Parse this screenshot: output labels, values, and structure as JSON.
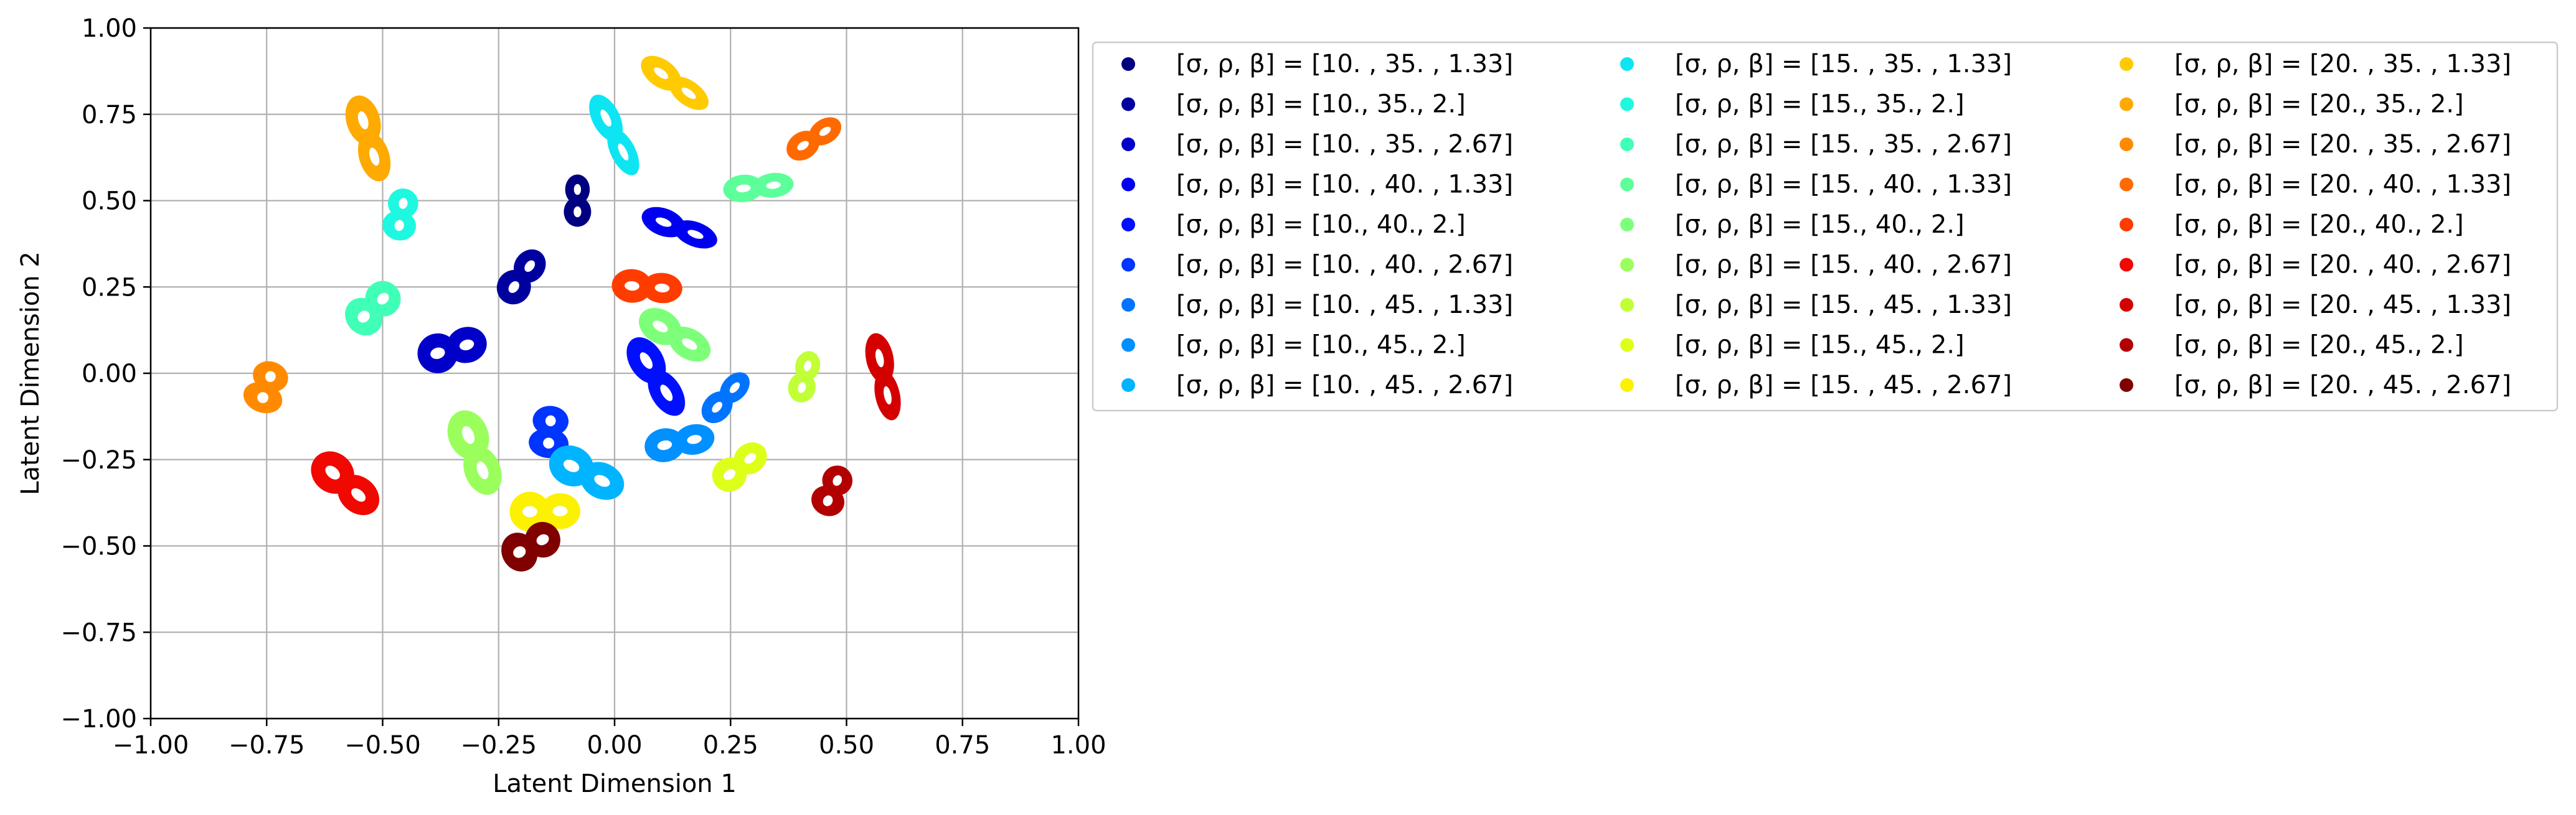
{
  "chart_data": {
    "type": "scatter",
    "title": "",
    "xlabel": "Latent Dimension 1",
    "ylabel": "Latent Dimension 2",
    "xlim": [
      -1.0,
      1.0
    ],
    "ylim": [
      -1.0,
      1.0
    ],
    "xticks": [
      "−1.00",
      "−0.75",
      "−0.50",
      "−0.25",
      "0.00",
      "0.25",
      "0.50",
      "0.75",
      "1.00"
    ],
    "yticks": [
      "−1.00",
      "−0.75",
      "−0.50",
      "−0.25",
      "0.00",
      "0.25",
      "0.50",
      "0.75",
      "1.00"
    ],
    "grid": true,
    "legend_placement": "outside-right",
    "series": [
      {
        "name": "[σ, ρ, β] = [10.  , 35.  ,  1.33]",
        "color": "#000080",
        "x": -0.08,
        "y": 0.5
      },
      {
        "name": "[σ, ρ, β] = [10., 35.,  2.]",
        "color": "#00009f",
        "x": -0.2,
        "y": 0.28
      },
      {
        "name": "[σ, ρ, β] = [10.  , 35.  ,  2.67]",
        "color": "#0000c8",
        "x": -0.35,
        "y": 0.07
      },
      {
        "name": "[σ, ρ, β] = [10.  , 40.  ,  1.33]",
        "color": "#0000f1",
        "x": 0.14,
        "y": 0.42
      },
      {
        "name": "[σ, ρ, β] = [10., 40.,  2.]",
        "color": "#0010ff",
        "x": 0.09,
        "y": -0.01
      },
      {
        "name": "[σ, ρ, β] = [10.  , 40.  ,  2.67]",
        "color": "#0034ff",
        "x": -0.14,
        "y": -0.17
      },
      {
        "name": "[σ, ρ, β] = [10.  , 45.  ,  1.33]",
        "color": "#0074ff",
        "x": 0.24,
        "y": -0.07
      },
      {
        "name": "[σ, ρ, β] = [10., 45.,  2.]",
        "color": "#0090ff",
        "x": 0.14,
        "y": -0.2
      },
      {
        "name": "[σ, ρ, β] = [10.  , 45.  ,  2.67]",
        "color": "#00b4ff",
        "x": -0.06,
        "y": -0.29
      },
      {
        "name": "[σ, ρ, β] = [15.  , 35.  ,  1.33]",
        "color": "#0de5f2",
        "x": 0.0,
        "y": 0.69
      },
      {
        "name": "[σ, ρ, β] = [15., 35.,  2.]",
        "color": "#1ff8e1",
        "x": -0.46,
        "y": 0.46
      },
      {
        "name": "[σ, ρ, β] = [15.  , 35.  ,  2.67]",
        "color": "#40ffb7",
        "x": -0.52,
        "y": 0.19
      },
      {
        "name": "[σ, ρ, β] = [15.  , 40.  ,  1.33]",
        "color": "#5dff9a",
        "x": 0.31,
        "y": 0.54
      },
      {
        "name": "[σ, ρ, β] = [15., 40.,  2.]",
        "color": "#7dff7a",
        "x": 0.13,
        "y": 0.11
      },
      {
        "name": "[σ, ρ, β] = [15.  , 40.  ,  2.67]",
        "color": "#9aff5d",
        "x": -0.3,
        "y": -0.23
      },
      {
        "name": "[σ, ρ, β] = [15.  , 45.  ,  1.33]",
        "color": "#c1ff36",
        "x": 0.41,
        "y": -0.01
      },
      {
        "name": "[σ, ρ, β] = [15., 45.,  2.]",
        "color": "#deff19",
        "x": 0.27,
        "y": -0.27
      },
      {
        "name": "[σ, ρ, β] = [15.  , 45.  ,  2.67]",
        "color": "#fbf100",
        "x": -0.15,
        "y": -0.4
      },
      {
        "name": "[σ, ρ, β] = [20.  , 35.  ,  1.33]",
        "color": "#ffca00",
        "x": 0.13,
        "y": 0.84
      },
      {
        "name": "[σ, ρ, β] = [20., 35.,  2.]",
        "color": "#ffaa00",
        "x": -0.53,
        "y": 0.68
      },
      {
        "name": "[σ, ρ, β] = [20.  , 35.  ,  2.67]",
        "color": "#ff8a00",
        "x": -0.75,
        "y": -0.04
      },
      {
        "name": "[σ, ρ, β] = [20.  , 40.  ,  1.33]",
        "color": "#ff6a00",
        "x": 0.43,
        "y": 0.68
      },
      {
        "name": "[σ, ρ, β] = [20., 40.,  2.]",
        "color": "#ff3c00",
        "x": 0.07,
        "y": 0.25
      },
      {
        "name": "[σ, ρ, β] = [20.  , 40.  ,  2.67]",
        "color": "#f10800",
        "x": -0.58,
        "y": -0.32
      },
      {
        "name": "[σ, ρ, β] = [20.  , 45.  ,  1.33]",
        "color": "#d40000",
        "x": 0.58,
        "y": -0.01
      },
      {
        "name": "[σ, ρ, β] = [20., 45.,  2.]",
        "color": "#b20000",
        "x": 0.47,
        "y": -0.34
      },
      {
        "name": "[σ, ρ, β] = [20.  , 45.  ,  2.67]",
        "color": "#800000",
        "x": -0.18,
        "y": -0.5
      }
    ]
  }
}
